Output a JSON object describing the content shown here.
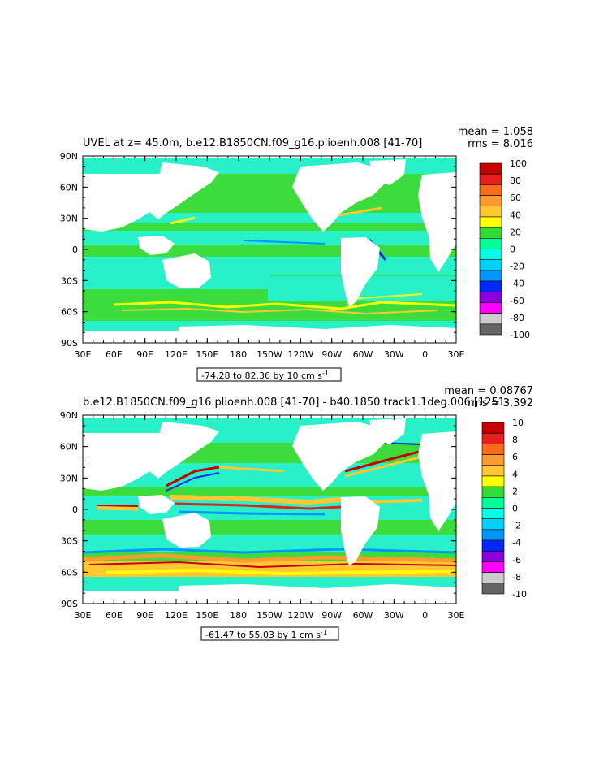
{
  "panels": [
    {
      "title": "UVEL at z=  45.0m, b.e12.B1850CN.f09_g16.plioenh.008 [41-70]",
      "mean_label": "mean = 1.058",
      "rms_label": "rms = 8.016",
      "range_label": "-74.28 to 82.36 by 10 cm s",
      "range_unit_exp": "-1",
      "colorbar_labels": [
        "100",
        "80",
        "60",
        "40",
        "20",
        "0",
        "-20",
        "-40",
        "-60",
        "-80",
        "-100"
      ]
    },
    {
      "title": "b.e12.B1850CN.f09_g16.plioenh.008 [41-70] - b40.1850.track1.1deg.006 [1251-",
      "mean_label": "mean = 0.08767",
      "rms_label": "rms = 3.392",
      "range_label": "-61.47 to 55.03 by 1 cm s",
      "range_unit_exp": "-1",
      "colorbar_labels": [
        "10",
        "8",
        "6",
        "4",
        "2",
        "0",
        "-2",
        "-4",
        "-6",
        "-8",
        "-10"
      ]
    }
  ],
  "lat_labels": [
    "90N",
    "60N",
    "30N",
    "0",
    "30S",
    "60S",
    "90S"
  ],
  "lon_labels": [
    "30E",
    "60E",
    "90E",
    "120E",
    "150E",
    "180",
    "150W",
    "120W",
    "90W",
    "60W",
    "30W",
    "0",
    "30E"
  ],
  "colorbar_colors": [
    "#c80000",
    "#e61e1e",
    "#ff6a1a",
    "#ff9a2e",
    "#ffc832",
    "#ffff00",
    "#32dc32",
    "#00ff96",
    "#00ffe6",
    "#00d2ff",
    "#0096ff",
    "#0028ff",
    "#8c00dc",
    "#ff00ff",
    "#cccccc",
    "#646464"
  ],
  "field_colors": {
    "land": "#ffffff",
    "green": "#3cdc3c",
    "cyan": "#28f0c8",
    "lightgreen": "#50f050"
  }
}
